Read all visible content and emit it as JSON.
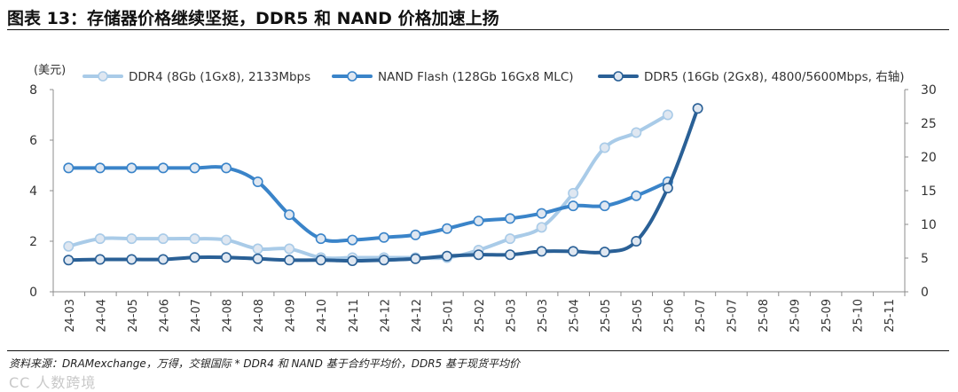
{
  "title": "图表 13：存储器价格继续坚挺，DDR5 和 NAND 价格加速上扬",
  "source": "资料来源：DRAMexchange，万得，交银国际   * DDR4 和 NAND 基于合约平均价，DDR5 基于现货平均价",
  "watermark": "CC 人数跨境",
  "colors": {
    "ddr4": "#a9cbe8",
    "nand": "#3a84c9",
    "ddr5": "#2a6096",
    "axis": "#8c8c8c"
  },
  "chart_data": {
    "type": "line",
    "title": "存储器价格继续坚挺，DDR5 和 NAND 价格加速上扬",
    "ylabel": "(美元)",
    "ylim": [
      0,
      8
    ],
    "y_ticks": [
      "0",
      "2",
      "4",
      "6",
      "8"
    ],
    "y2lim": [
      0,
      30
    ],
    "y2_ticks": [
      "0",
      "5",
      "10",
      "15",
      "20",
      "25",
      "30"
    ],
    "categories": [
      "24-03",
      "24-04",
      "24-05",
      "24-06",
      "24-07",
      "24-08",
      "24-08",
      "24-09",
      "24-10",
      "24-11",
      "24-12",
      "24-12",
      "25-01",
      "25-02",
      "25-03",
      "25-03",
      "25-04",
      "25-05",
      "25-05",
      "25-06",
      "25-07",
      "25-07",
      "25-08",
      "25-09",
      "25-09",
      "25-10",
      "25-11"
    ],
    "legend_position": "top",
    "series": [
      {
        "name": "DDR4 (8Gb (1Gx8), 2133Mbps",
        "axis": "left",
        "color_key": "ddr4",
        "points": [
          {
            "x": 0,
            "y": 1.8
          },
          {
            "x": 1,
            "y": 2.1
          },
          {
            "x": 2,
            "y": 2.1
          },
          {
            "x": 3,
            "y": 2.1
          },
          {
            "x": 4,
            "y": 2.1
          },
          {
            "x": 5,
            "y": 2.05
          },
          {
            "x": 6,
            "y": 1.7
          },
          {
            "x": 7,
            "y": 1.7
          },
          {
            "x": 8,
            "y": 1.35
          },
          {
            "x": 9,
            "y": 1.35
          },
          {
            "x": 10,
            "y": 1.35
          },
          {
            "x": 11,
            "y": 1.35
          },
          {
            "x": 12,
            "y": 1.35
          },
          {
            "x": 13,
            "y": 1.65
          },
          {
            "x": 14,
            "y": 2.1
          },
          {
            "x": 15,
            "y": 2.55
          },
          {
            "x": 16,
            "y": 3.9
          },
          {
            "x": 17,
            "y": 5.7
          },
          {
            "x": 18,
            "y": 6.3
          },
          {
            "x": 19,
            "y": 7.0
          }
        ]
      },
      {
        "name": "NAND Flash (128Gb 16Gx8 MLC)",
        "axis": "left",
        "color_key": "nand",
        "points": [
          {
            "x": 0,
            "y": 4.9
          },
          {
            "x": 1,
            "y": 4.9
          },
          {
            "x": 2,
            "y": 4.9
          },
          {
            "x": 3,
            "y": 4.9
          },
          {
            "x": 4,
            "y": 4.9
          },
          {
            "x": 5,
            "y": 4.9
          },
          {
            "x": 6,
            "y": 4.35
          },
          {
            "x": 7,
            "y": 3.05
          },
          {
            "x": 8,
            "y": 2.1
          },
          {
            "x": 9,
            "y": 2.05
          },
          {
            "x": 10,
            "y": 2.15
          },
          {
            "x": 11,
            "y": 2.25
          },
          {
            "x": 12,
            "y": 2.5
          },
          {
            "x": 13,
            "y": 2.8
          },
          {
            "x": 14,
            "y": 2.9
          },
          {
            "x": 15,
            "y": 3.1
          },
          {
            "x": 16,
            "y": 3.4
          },
          {
            "x": 17,
            "y": 3.4
          },
          {
            "x": 18,
            "y": 3.8
          },
          {
            "x": 19,
            "y": 4.35
          }
        ]
      },
      {
        "name": "DDR5 (16Gb (2Gx8), 4800/5600Mbps, 右轴)",
        "axis": "right",
        "color_key": "ddr5",
        "points": [
          {
            "x": 0,
            "y": 4.7
          },
          {
            "x": 1,
            "y": 4.8
          },
          {
            "x": 2,
            "y": 4.8
          },
          {
            "x": 3,
            "y": 4.8
          },
          {
            "x": 4,
            "y": 5.1
          },
          {
            "x": 5,
            "y": 5.1
          },
          {
            "x": 6,
            "y": 4.9
          },
          {
            "x": 7,
            "y": 4.7
          },
          {
            "x": 8,
            "y": 4.7
          },
          {
            "x": 9,
            "y": 4.6
          },
          {
            "x": 10,
            "y": 4.7
          },
          {
            "x": 11,
            "y": 4.9
          },
          {
            "x": 12,
            "y": 5.3
          },
          {
            "x": 13,
            "y": 5.5
          },
          {
            "x": 14,
            "y": 5.5
          },
          {
            "x": 15,
            "y": 6.0
          },
          {
            "x": 16,
            "y": 6.0
          },
          {
            "x": 17,
            "y": 5.9
          },
          {
            "x": 18,
            "y": 7.5
          },
          {
            "x": 19,
            "y": 15.4
          },
          {
            "x": 19.95,
            "y": 27.2
          }
        ]
      }
    ]
  }
}
